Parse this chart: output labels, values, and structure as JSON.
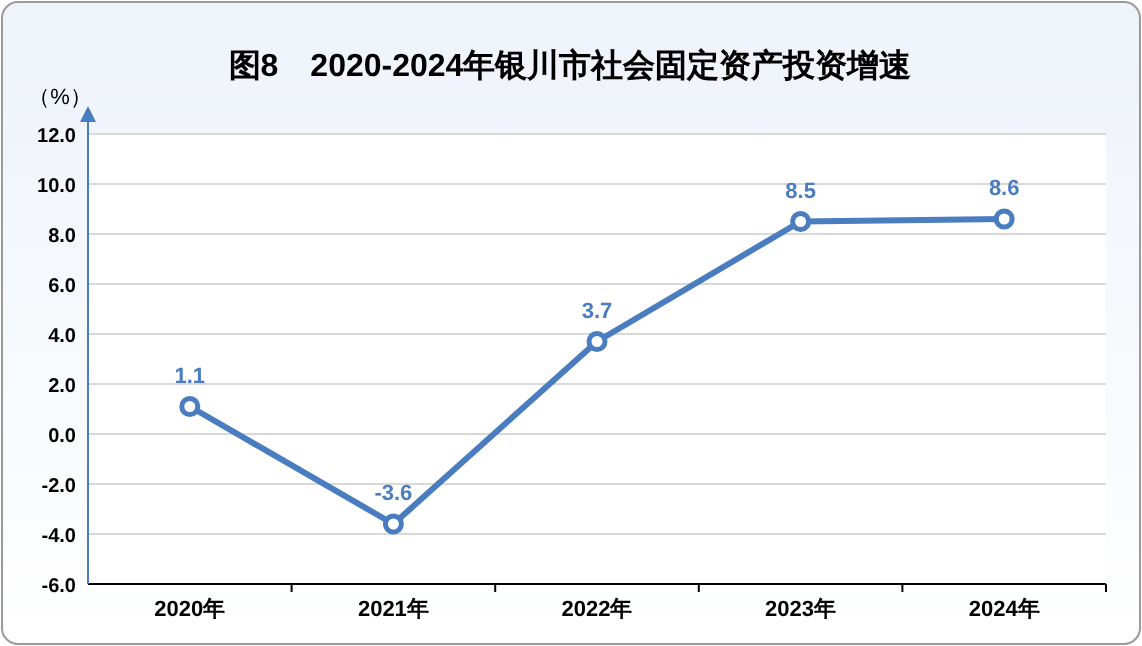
{
  "chart_data": {
    "type": "line",
    "title": "图8　2020-2024年银川市社会固定资产投资增速",
    "ylabel": "（%）",
    "categories": [
      "2020年",
      "2021年",
      "2022年",
      "2023年",
      "2024年"
    ],
    "series": [
      {
        "color": "#4a7cc0",
        "values": [
          1.1,
          -3.6,
          3.7,
          8.5,
          8.6
        ]
      }
    ],
    "ylim": [
      -6,
      12
    ],
    "yticks": [
      {
        "value": -6,
        "label": "-6.0"
      },
      {
        "value": -4,
        "label": "-4.0"
      },
      {
        "value": -2,
        "label": "-2.0"
      },
      {
        "value": 0,
        "label": "0.0"
      },
      {
        "value": 2,
        "label": "2.0"
      },
      {
        "value": 4,
        "label": "4.0"
      },
      {
        "value": 6,
        "label": "6.0"
      },
      {
        "value": 8,
        "label": "8.0"
      },
      {
        "value": 10,
        "label": "10.0"
      },
      {
        "value": 12,
        "label": "12.0"
      }
    ],
    "grid": "y",
    "marker": "circle",
    "line_style": "solid",
    "data_labels": true
  }
}
